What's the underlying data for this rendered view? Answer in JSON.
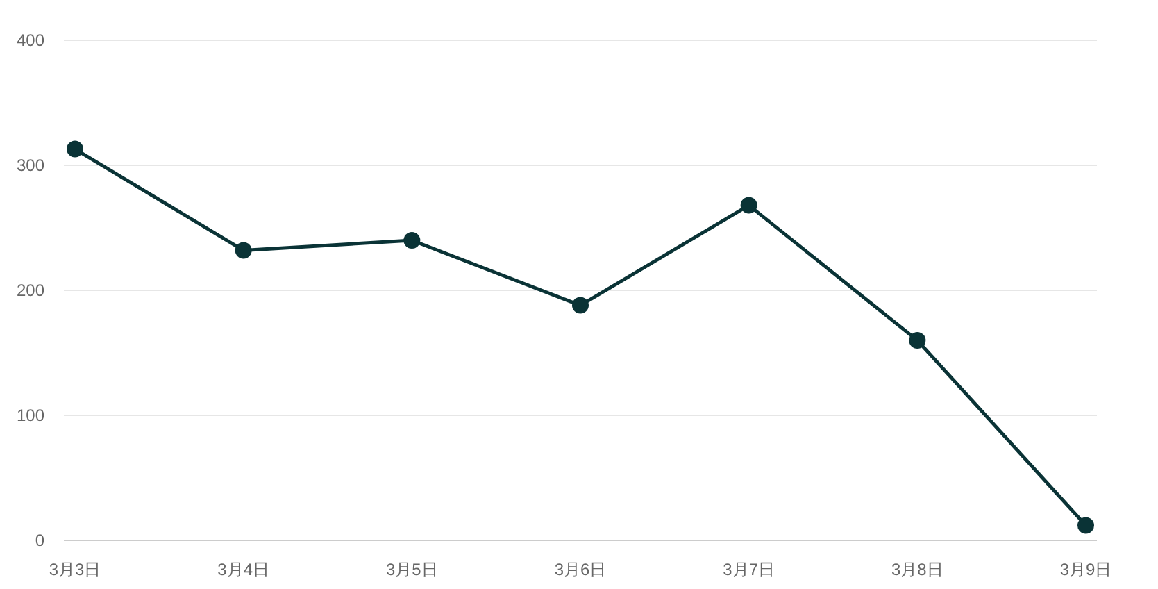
{
  "chart_data": {
    "type": "line",
    "categories": [
      "3月3日",
      "3月4日",
      "3月5日",
      "3月6日",
      "3月7日",
      "3月8日",
      "3月9日"
    ],
    "series": [
      {
        "color": "#0a3336",
        "values": [
          313,
          232,
          240,
          188,
          268,
          160,
          12
        ]
      }
    ],
    "ylim": [
      0,
      400
    ],
    "yticks": [
      0,
      100,
      200,
      300,
      400
    ],
    "grid": "y",
    "marker": "circle",
    "line_style": "solid"
  }
}
